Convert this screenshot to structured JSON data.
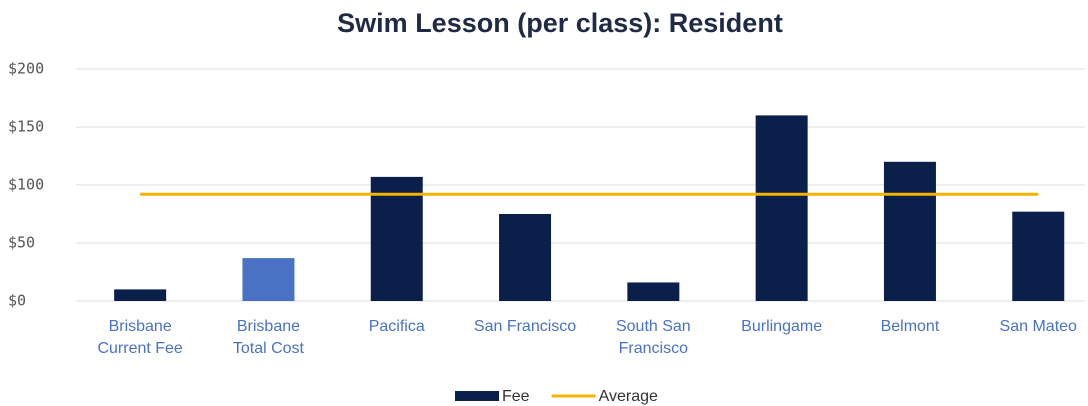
{
  "chart_data": {
    "type": "bar",
    "title": "Swim Lesson (per class): Resident",
    "categories": [
      "Brisbane\nCurrent Fee",
      "Brisbane\nTotal Cost",
      "Pacifica",
      "San Francisco",
      "South San\nFrancisco",
      "Burlingame",
      "Belmont",
      "San Mateo"
    ],
    "series": [
      {
        "name": "Fee",
        "color": "#0b1f4b",
        "colors": [
          "#0b1f4b",
          "#4a72c4",
          "#0b1f4b",
          "#0b1f4b",
          "#0b1f4b",
          "#0b1f4b",
          "#0b1f4b",
          "#0b1f4b"
        ],
        "values": [
          10,
          37,
          107,
          75,
          16,
          160,
          120,
          77
        ]
      },
      {
        "name": "Average",
        "type": "line",
        "color": "#f5b400",
        "values": [
          92,
          92,
          92,
          92,
          92,
          92,
          92,
          92
        ]
      }
    ],
    "ylim": [
      0,
      200
    ],
    "yticks": [
      {
        "value": 0,
        "label": "$0"
      },
      {
        "value": 50,
        "label": "$50"
      },
      {
        "value": 100,
        "label": "$100"
      },
      {
        "value": 150,
        "label": "$150"
      },
      {
        "value": 200,
        "label": "$200"
      }
    ],
    "grid": true,
    "legend": "bottom"
  }
}
